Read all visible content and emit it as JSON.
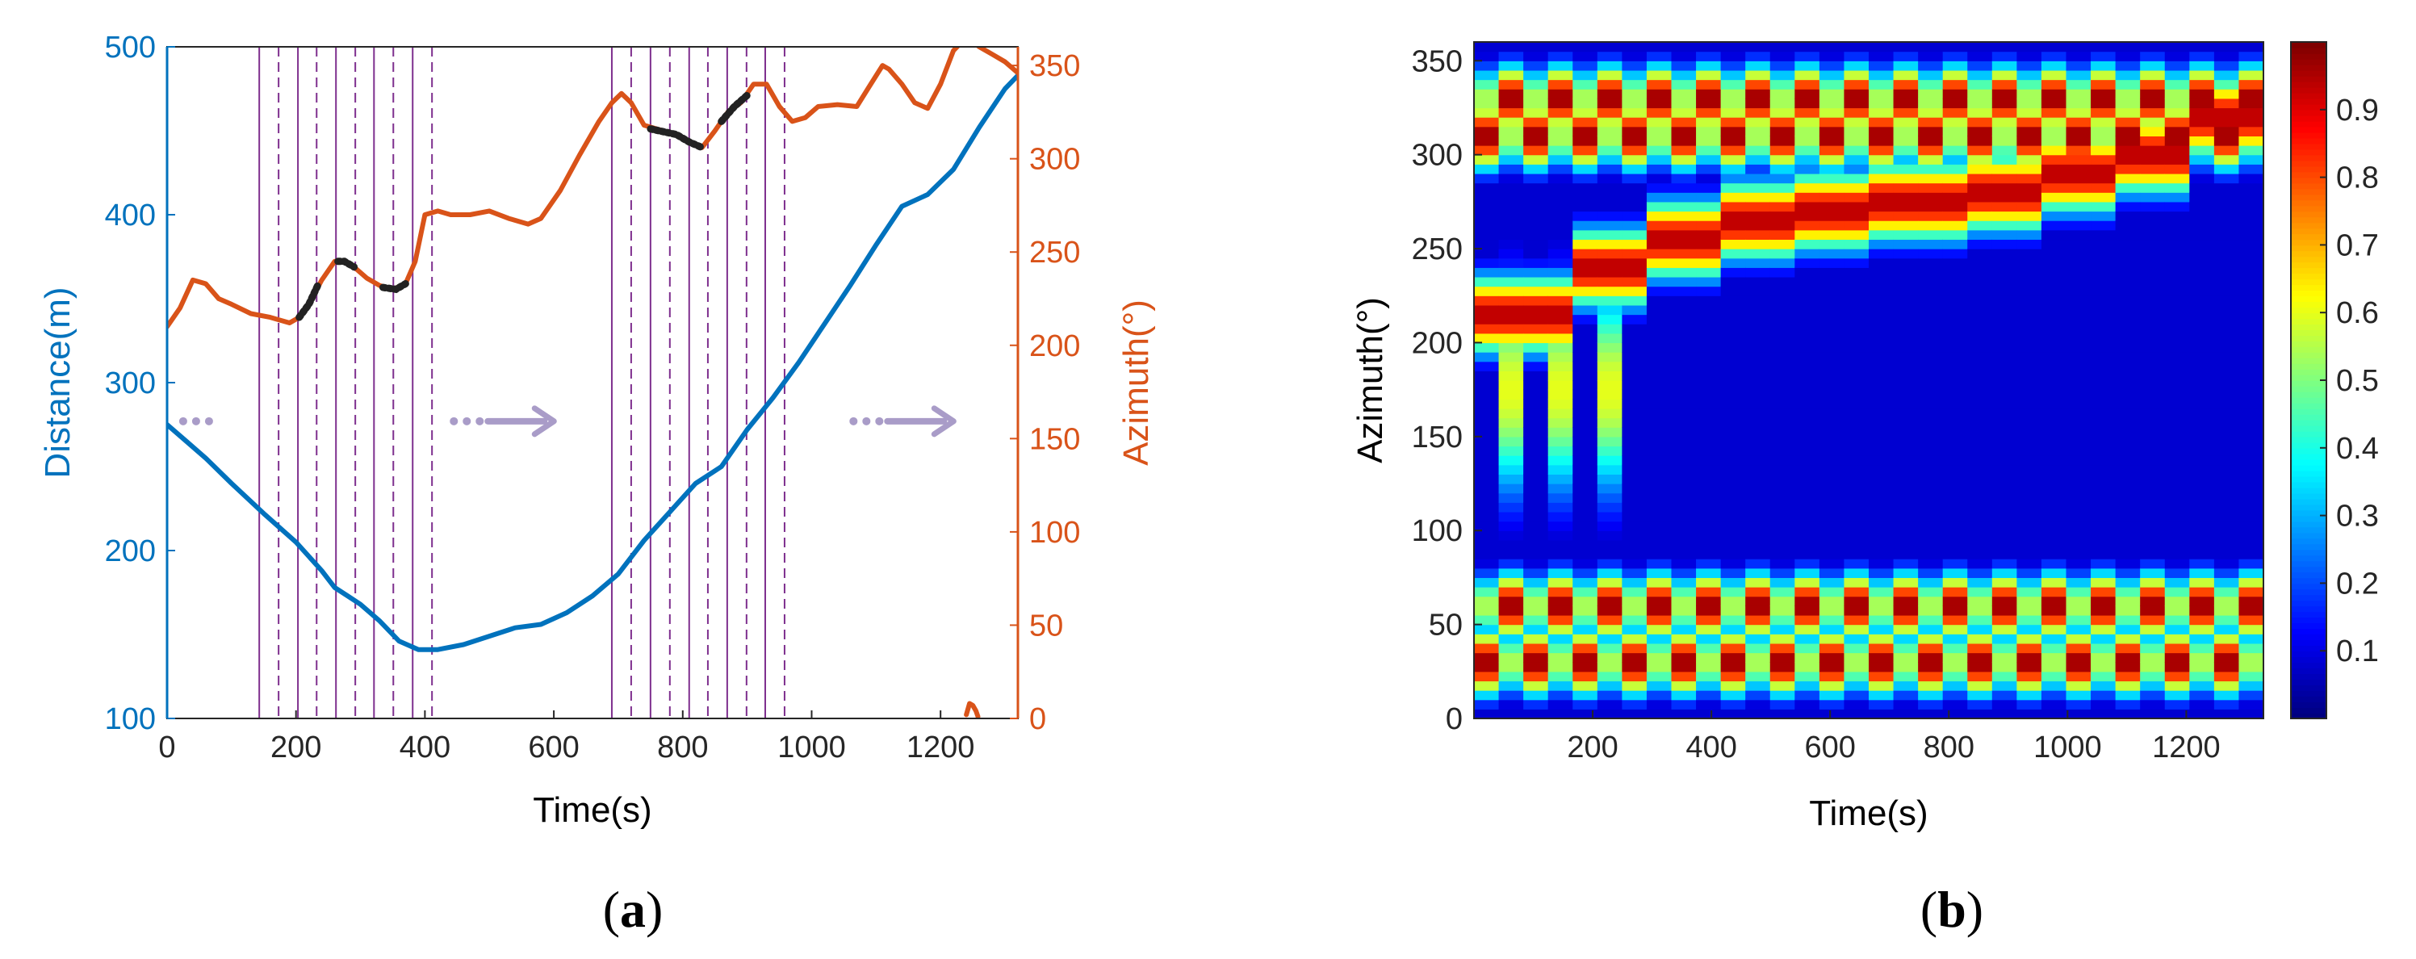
{
  "chart_data": [
    {
      "type": "line",
      "panel_label_open": "(",
      "panel_label_letter": "a",
      "panel_label_close": ")",
      "xlabel": "Time(s)",
      "ylabel_left": "Distance(m)",
      "ylabel_right": "Azimuth(°)",
      "xlim": [
        0,
        1320
      ],
      "ylim_left": [
        100,
        500
      ],
      "ylim_right": [
        0,
        360
      ],
      "x_ticks": [
        0,
        200,
        400,
        600,
        800,
        1000,
        1200
      ],
      "y_left_ticks": [
        100,
        200,
        300,
        400,
        500
      ],
      "y_right_ticks": [
        0,
        50,
        100,
        150,
        200,
        250,
        300,
        350
      ],
      "colors": {
        "distance": "#0072BD",
        "azimuth": "#D95319",
        "segment": "#7E2F8E",
        "highlight": "#222222",
        "arrow": "#A99CC8"
      },
      "series": [
        {
          "name": "Distance",
          "axis": "left",
          "x": [
            0,
            30,
            60,
            100,
            150,
            200,
            240,
            260,
            280,
            300,
            330,
            360,
            390,
            420,
            460,
            500,
            540,
            580,
            620,
            660,
            700,
            740,
            780,
            820,
            860,
            900,
            940,
            980,
            1020,
            1060,
            1100,
            1140,
            1180,
            1220,
            1260,
            1300,
            1320
          ],
          "y": [
            275,
            265,
            255,
            240,
            222,
            205,
            188,
            178,
            173,
            168,
            158,
            146,
            141,
            141,
            144,
            149,
            154,
            156,
            163,
            173,
            186,
            206,
            223,
            240,
            250,
            272,
            291,
            312,
            335,
            358,
            382,
            405,
            412,
            427,
            452,
            475,
            483
          ]
        },
        {
          "name": "Azimuth",
          "axis": "right",
          "x": [
            0,
            20,
            40,
            60,
            80,
            100,
            130,
            160,
            190,
            205,
            220,
            240,
            260,
            275,
            290,
            310,
            330,
            350,
            370,
            385,
            400,
            420,
            440,
            470,
            500,
            530,
            560,
            580,
            610,
            640,
            670,
            690,
            705,
            720,
            740,
            760,
            790,
            810,
            830,
            850,
            870,
            890,
            910,
            930,
            950,
            970,
            990,
            1010,
            1040,
            1070,
            1090,
            1110,
            1120,
            1140,
            1160,
            1180,
            1200,
            1220,
            1240,
            1260,
            1280,
            1300,
            1320
          ],
          "y": [
            210,
            220,
            235,
            233,
            225,
            222,
            217,
            215,
            212,
            215,
            222,
            235,
            245,
            245,
            242,
            236,
            232,
            230,
            233,
            245,
            270,
            272,
            270,
            270,
            272,
            268,
            265,
            268,
            283,
            302,
            320,
            330,
            335,
            330,
            318,
            316,
            313,
            309,
            306,
            315,
            325,
            330,
            340,
            340,
            328,
            320,
            322,
            328,
            329,
            328,
            339,
            350,
            348,
            340,
            330,
            327,
            340,
            358,
            365,
            360,
            356,
            352,
            346
          ]
        },
        {
          "name": "Azimuth (fragment)",
          "axis": "right",
          "x": [
            1240,
            1245,
            1250,
            1255,
            1258
          ],
          "y": [
            2,
            8,
            7,
            4,
            1
          ]
        },
        {
          "name": "Highlighted segments",
          "axis": "right",
          "style": "dotted-black",
          "segments": [
            {
              "x": [
                205,
                220,
                235
              ],
              "y": [
                215,
                222,
                233
              ]
            },
            {
              "x": [
                265,
                275,
                290
              ],
              "y": [
                245,
                245,
                242
              ]
            },
            {
              "x": [
                335,
                355,
                370
              ],
              "y": [
                231,
                230,
                233
              ]
            },
            {
              "x": [
                750,
                790,
                810,
                830
              ],
              "y": [
                316,
                313,
                309,
                306
              ]
            },
            {
              "x": [
                860,
                880,
                900
              ],
              "y": [
                320,
                328,
                334
              ]
            }
          ]
        }
      ],
      "vertical_lines": {
        "solid": [
          143,
          203,
          262,
          321,
          381,
          690,
          750,
          810,
          869,
          928
        ],
        "dashed": [
          173,
          232,
          292,
          351,
          411,
          720,
          780,
          839,
          899,
          958
        ]
      },
      "annotations": [
        {
          "type": "dots",
          "x": 60,
          "y_left": 277
        },
        {
          "type": "dots-arrow",
          "x": 480,
          "y_left": 277
        },
        {
          "type": "dots-arrow",
          "x": 1100,
          "y_left": 277
        }
      ]
    },
    {
      "type": "heatmap",
      "panel_label_open": "(",
      "panel_label_letter": "b",
      "panel_label_close": ")",
      "xlabel": "Time(s)",
      "ylabel": "Azimuth(°)",
      "xlim": [
        0,
        1330
      ],
      "ylim": [
        0,
        360
      ],
      "x_ticks": [
        200,
        400,
        600,
        800,
        1000,
        1200
      ],
      "y_ticks": [
        0,
        50,
        100,
        150,
        200,
        250,
        300,
        350
      ],
      "colorbar_ticks": [
        0.1,
        0.2,
        0.3,
        0.4,
        0.5,
        0.6,
        0.7,
        0.8,
        0.9
      ],
      "colorbar_range": [
        0,
        1
      ],
      "colormap": "jet",
      "columns": 32,
      "azimuth_bins": 72,
      "column_centers_azimuth": [
        215,
        240,
        255,
        265,
        270,
        275,
        280,
        290,
        300,
        320
      ],
      "persistent_peaks": [
        30,
        60,
        310,
        330
      ]
    }
  ]
}
